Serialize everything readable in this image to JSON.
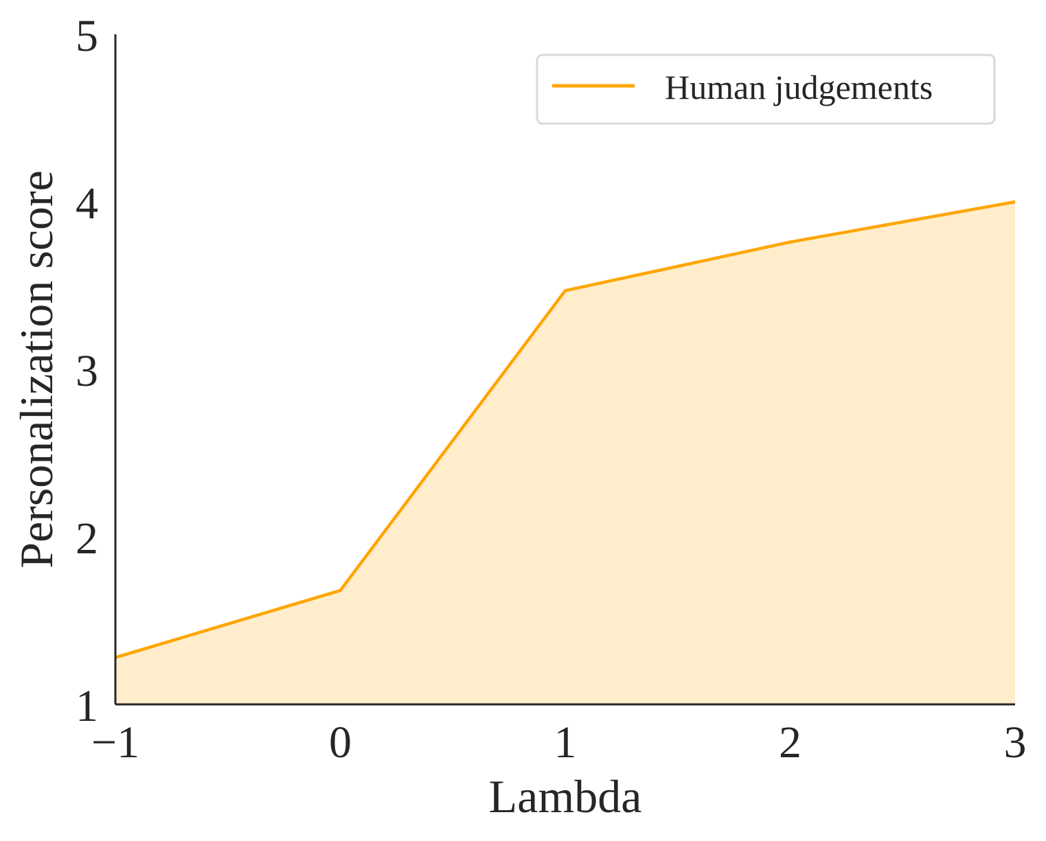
{
  "chart_data": {
    "type": "area",
    "x": [
      -1,
      0,
      1,
      2,
      3
    ],
    "series": [
      {
        "name": "Human judgements",
        "values": [
          1.28,
          1.68,
          3.47,
          3.76,
          4.0
        ],
        "color": "#ffa500",
        "fill_color": "#ffedcc"
      }
    ],
    "xlabel": "Lambda",
    "ylabel": "Personalization score",
    "xlim": [
      -1,
      3
    ],
    "ylim": [
      1,
      5
    ],
    "xticks": [
      -1,
      0,
      1,
      2,
      3
    ],
    "xtick_labels": [
      "−1",
      "0",
      "1",
      "2",
      "3"
    ],
    "yticks": [
      1,
      2,
      3,
      4,
      5
    ],
    "ytick_labels": [
      "1",
      "2",
      "3",
      "4",
      "5"
    ],
    "grid": false,
    "legend_position": "top-right",
    "axis_color": "#262626",
    "legend_border_color": "#d9d9d9"
  }
}
